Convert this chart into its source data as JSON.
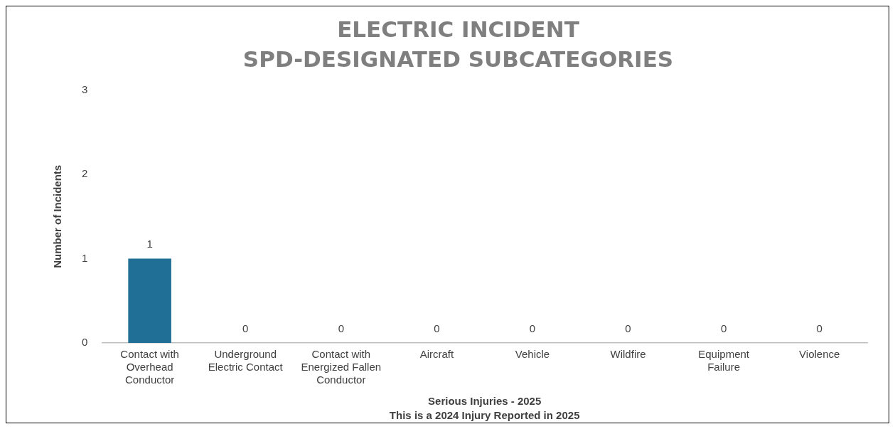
{
  "chart_data": {
    "type": "bar",
    "title": "ELECTRIC INCIDENT\nSPD-DESIGNATED SUBCATEGORIES",
    "xlabel": "Serious Injuries - 2025",
    "ylabel": "Number of Incidents",
    "categories": [
      "Contact with Overhead Conductor",
      "Underground Electric Contact",
      "Contact with Energized Fallen Conductor",
      "Aircraft",
      "Vehicle",
      "Wildfire",
      "Equipment Failure",
      "Violence"
    ],
    "values": [
      1,
      0,
      0,
      0,
      0,
      0,
      0,
      0
    ],
    "color": "#1f6f96",
    "ylim": [
      0,
      3
    ],
    "yticks": [
      0,
      1,
      2,
      3
    ],
    "grid": false,
    "data_labels": true,
    "legend": false,
    "annotations": [
      "This is a 2024 Injury Reported in 2025"
    ]
  }
}
